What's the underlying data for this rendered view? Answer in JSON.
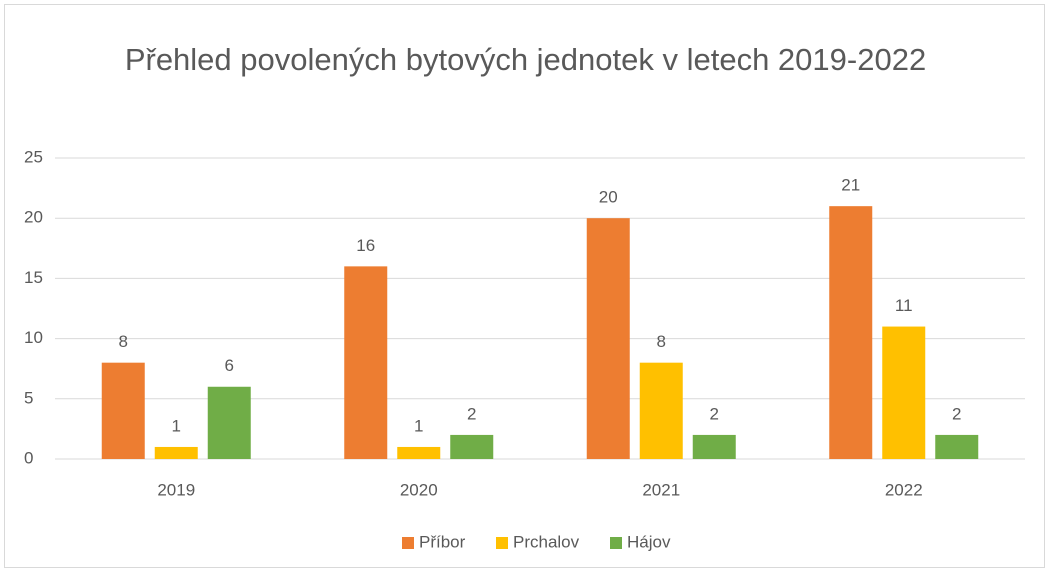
{
  "chart_data": {
    "type": "bar",
    "title": "Přehled povolených bytových jednotek v letech 2019-2022",
    "categories": [
      "2019",
      "2020",
      "2021",
      "2022"
    ],
    "series": [
      {
        "name": "Příbor",
        "color": "#ed7d31",
        "values": [
          8,
          16,
          20,
          21
        ]
      },
      {
        "name": "Prchalov",
        "color": "#ffc000",
        "values": [
          1,
          1,
          8,
          11
        ]
      },
      {
        "name": "Hájov",
        "color": "#70ad47",
        "values": [
          6,
          2,
          2,
          2
        ]
      }
    ],
    "ylim": [
      0,
      25
    ],
    "yticks": [
      0,
      5,
      10,
      15,
      20,
      25
    ],
    "grid": true,
    "legend": "bottom"
  }
}
